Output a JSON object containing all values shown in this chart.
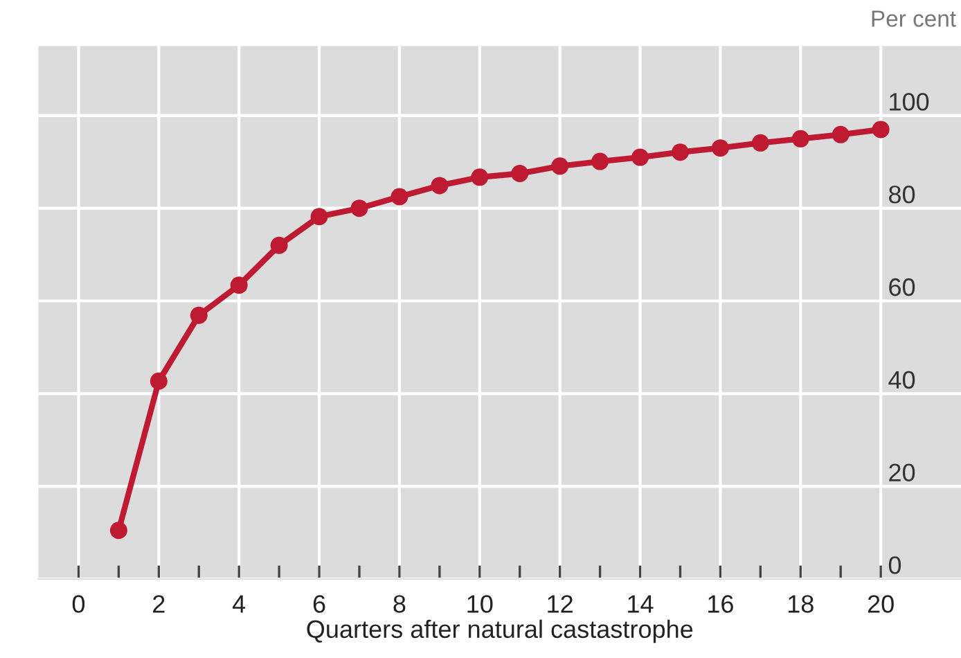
{
  "chart_data": {
    "type": "line",
    "xlabel": "Quarters after natural castastrophe",
    "ylabel": "Per cent",
    "x": [
      1,
      2,
      3,
      4,
      5,
      6,
      7,
      8,
      9,
      10,
      11,
      12,
      13,
      14,
      15,
      16,
      17,
      18,
      19,
      20
    ],
    "series": [
      {
        "color": "#be1a32",
        "values": [
          10.5,
          42.7,
          56.9,
          63.4,
          72,
          78.2,
          80,
          82.5,
          84.9,
          86.7,
          87.5,
          89.1,
          90.1,
          91,
          92.1,
          93,
          94.1,
          95,
          95.9,
          97
        ]
      }
    ],
    "marker": "circle",
    "line_style": "solid",
    "grid": true,
    "xlim": [
      -1,
      22
    ],
    "ylim": [
      0,
      115
    ],
    "xticks": [
      0,
      {
        "value": 1,
        "label": null
      },
      2,
      {
        "value": 3,
        "label": null
      },
      4,
      {
        "value": 5,
        "label": null
      },
      6,
      {
        "value": 7,
        "label": null
      },
      8,
      {
        "value": 9,
        "label": null
      },
      10,
      {
        "value": 11,
        "label": null
      },
      12,
      {
        "value": 13,
        "label": null
      },
      14,
      {
        "value": 15,
        "label": null
      },
      16,
      {
        "value": 17,
        "label": null
      },
      18,
      {
        "value": 19,
        "label": null
      },
      20
    ],
    "yticks": [
      0,
      20,
      40,
      60,
      80,
      100
    ]
  }
}
